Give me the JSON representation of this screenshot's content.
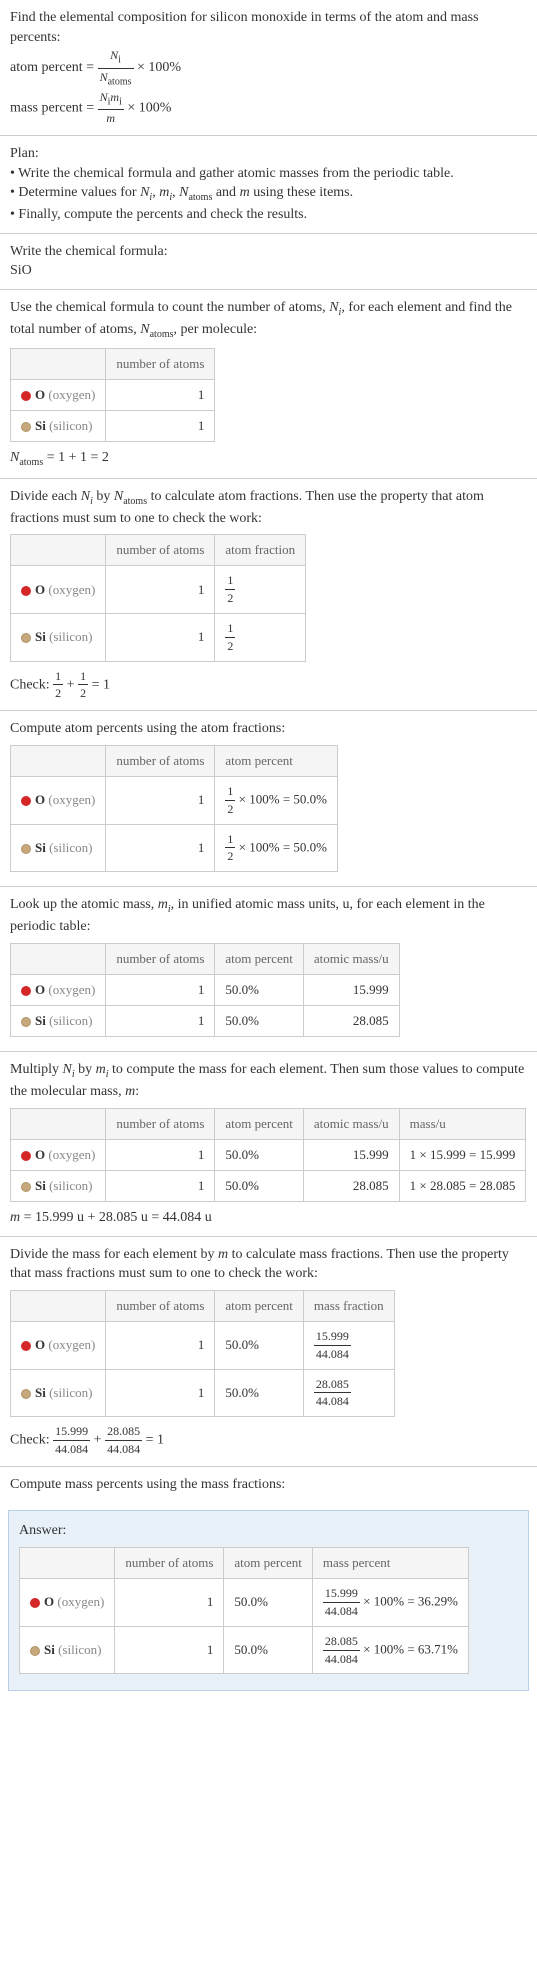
{
  "intro": {
    "line1": "Find the elemental composition for silicon monoxide in terms of the atom and mass percents:",
    "atom_percent_label": "atom percent = ",
    "atom_percent_frac_num": "N",
    "atom_percent_frac_num_sub": "i",
    "atom_percent_frac_den": "N",
    "atom_percent_frac_den_sub": "atoms",
    "times100": " × 100%",
    "mass_percent_label": "mass percent = ",
    "mass_percent_frac_num": "N",
    "mass_percent_frac_num_sub": "i",
    "mass_percent_frac_num2": "m",
    "mass_percent_frac_num2_sub": "i",
    "mass_percent_frac_den": "m"
  },
  "plan": {
    "title": "Plan:",
    "b1": "• Write the chemical formula and gather atomic masses from the periodic table.",
    "b2a": "• Determine values for ",
    "b2_n": "N",
    "b2_ni": "i",
    "b2_m": "m",
    "b2_mi": "i",
    "b2_na": "N",
    "b2_nas": "atoms",
    "b2_and": " and ",
    "b2_mm": "m",
    "b2_end": " using these items.",
    "b3": "• Finally, compute the percents and check the results."
  },
  "formula_sec": {
    "title": "Write the chemical formula:",
    "formula": "SiO"
  },
  "count_sec": {
    "text1": "Use the chemical formula to count the number of atoms, ",
    "n": "N",
    "ni": "i",
    "text2": ", for each element and find the total number of atoms, ",
    "na": "N",
    "nas": "atoms",
    "text3": ", per molecule:",
    "col_num": "number of atoms",
    "o_label": "O",
    "o_paren": " (oxygen)",
    "o_count": "1",
    "si_label": "Si",
    "si_paren": " (silicon)",
    "si_count": "1",
    "natoms_eq": " = 1 + 1 = 2"
  },
  "atomfrac_sec": {
    "text1": "Divide each ",
    "n1": "N",
    "n1i": "i",
    "text2": " by ",
    "n2": "N",
    "n2s": "atoms",
    "text3": " to calculate atom fractions. Then use the property that atom fractions must sum to one to check the work:",
    "col_num": "number of atoms",
    "col_frac": "atom fraction",
    "o_count": "1",
    "o_frac_n": "1",
    "o_frac_d": "2",
    "si_count": "1",
    "si_frac_n": "1",
    "si_frac_d": "2",
    "check_label": "Check: ",
    "check_eq": " = 1"
  },
  "atompct_sec": {
    "text": "Compute atom percents using the atom fractions:",
    "col_num": "number of atoms",
    "col_pct": "atom percent",
    "o_count": "1",
    "o_pct": " × 100% = 50.0%",
    "si_count": "1",
    "si_pct": " × 100% = 50.0%"
  },
  "mass_lookup": {
    "text1": "Look up the atomic mass, ",
    "m": "m",
    "mi": "i",
    "text2": ", in unified atomic mass units, u, for each element in the periodic table:",
    "col_num": "number of atoms",
    "col_pct": "atom percent",
    "col_mass": "atomic mass/u",
    "o_count": "1",
    "o_pct": "50.0%",
    "o_mass": "15.999",
    "si_count": "1",
    "si_pct": "50.0%",
    "si_mass": "28.085"
  },
  "mult_sec": {
    "text1": "Multiply ",
    "n": "N",
    "ni": "i",
    "text2": " by ",
    "m": "m",
    "mi": "i",
    "text3": " to compute the mass for each element. Then sum those values to compute the molecular mass, ",
    "mm": "m",
    "text4": ":",
    "col_num": "number of atoms",
    "col_pct": "atom percent",
    "col_amass": "atomic mass/u",
    "col_mass": "mass/u",
    "o_count": "1",
    "o_pct": "50.0%",
    "o_amass": "15.999",
    "o_mass": "1 × 15.999 = 15.999",
    "si_count": "1",
    "si_pct": "50.0%",
    "si_amass": "28.085",
    "si_mass": "1 × 28.085 = 28.085",
    "m_eq": " = 15.999 u + 28.085 u = 44.084 u"
  },
  "massfrac_sec": {
    "text1": "Divide the mass for each element by ",
    "m": "m",
    "text2": " to calculate mass fractions. Then use the property that mass fractions must sum to one to check the work:",
    "col_num": "number of atoms",
    "col_pct": "atom percent",
    "col_mfrac": "mass fraction",
    "o_count": "1",
    "o_pct": "50.0%",
    "o_mf_n": "15.999",
    "o_mf_d": "44.084",
    "si_count": "1",
    "si_pct": "50.0%",
    "si_mf_n": "28.085",
    "si_mf_d": "44.084",
    "check_label": "Check: ",
    "c1n": "15.999",
    "c1d": "44.084",
    "c2n": "28.085",
    "c2d": "44.084",
    "check_eq": " = 1"
  },
  "final_sec": {
    "text": "Compute mass percents using the mass fractions:",
    "answer_label": "Answer:",
    "col_num": "number of atoms",
    "col_pct": "atom percent",
    "col_mpct": "mass percent",
    "o_count": "1",
    "o_pct": "50.0%",
    "o_mp_n": "15.999",
    "o_mp_d": "44.084",
    "o_mp_eq": " × 100% = 36.29%",
    "si_count": "1",
    "si_pct": "50.0%",
    "si_mp_n": "28.085",
    "si_mp_d": "44.084",
    "si_mp_eq": " × 100% = 63.71%"
  },
  "colors": {
    "oxygen": "#d62728",
    "silicon": "#c7a87a",
    "border": "#cccccc",
    "answer_bg": "#e8f0f8",
    "answer_border": "#b8d0e8"
  }
}
